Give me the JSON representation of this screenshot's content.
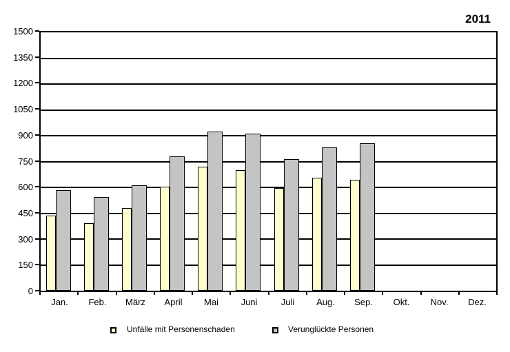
{
  "title_year": "2011",
  "chart_data": {
    "type": "bar",
    "title": "2011",
    "categories": [
      "Jan.",
      "Feb.",
      "März",
      "April",
      "Mai",
      "Juni",
      "Juli",
      "Aug.",
      "Sep.",
      "Okt.",
      "Nov.",
      "Dez."
    ],
    "series": [
      {
        "name": "Unfälle mit Personenschaden",
        "color": "#FFFFCC",
        "values": [
          435,
          390,
          480,
          605,
          720,
          700,
          595,
          655,
          645,
          null,
          null,
          null
        ]
      },
      {
        "name": "Verunglückte Personen",
        "color": "#C4C4C4",
        "values": [
          585,
          545,
          610,
          780,
          925,
          910,
          765,
          830,
          855,
          null,
          null,
          null
        ]
      }
    ],
    "xlabel": "",
    "ylabel": "",
    "ylim": [
      0,
      1500
    ],
    "ytick_step": 150,
    "yticks": [
      0,
      150,
      300,
      450,
      600,
      750,
      900,
      1050,
      1200,
      1350,
      1500
    ],
    "grid": "horizontal-only",
    "gridline_color": "#000000",
    "background_color": "#FFFFFF",
    "legend_position": "bottom"
  },
  "legend": {
    "items": [
      {
        "label": "Unfälle mit Personenschaden",
        "color": "#FFFFCC"
      },
      {
        "label": "Verunglückte Personen",
        "color": "#C4C4C4"
      }
    ]
  }
}
